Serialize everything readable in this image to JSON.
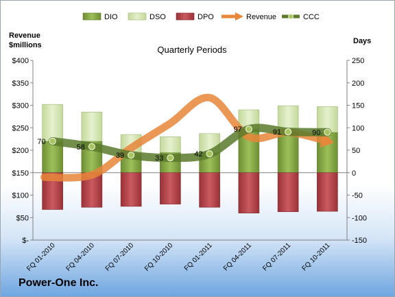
{
  "company": "Power-One Inc.",
  "chart_data": {
    "type": "bar",
    "title": "Quarterly Periods",
    "ylabel_left": "Revenue\n$millions",
    "ylabel_right": "Days",
    "categories": [
      "FQ 01-2010",
      "FQ 04-2010",
      "FQ 07-2010",
      "FQ 10-2010",
      "FQ 01-2011",
      "FQ 04-2011",
      "FQ 07-2011",
      "FQ 10-2011"
    ],
    "left_ticks": [
      "$-",
      "$50",
      "$100",
      "$150",
      "$200",
      "$250",
      "$300",
      "$350",
      "$400"
    ],
    "right_ticks": [
      "-150",
      "-100",
      "-50",
      "0",
      "50",
      "100",
      "150",
      "200",
      "250"
    ],
    "ylim_left": [
      0,
      400
    ],
    "ylim_right": [
      -150,
      250
    ],
    "legend_position": "top",
    "series": [
      {
        "name": "DIO",
        "axis": "days",
        "stack": "pos",
        "color": "#8fb14e",
        "values": [
          70,
          70,
          42,
          45,
          45,
          97,
          91,
          90
        ]
      },
      {
        "name": "DSO",
        "axis": "days",
        "stack": "pos",
        "color": "#d6e8b3",
        "values": [
          82,
          65,
          43,
          35,
          42,
          43,
          58,
          57
        ]
      },
      {
        "name": "DPO",
        "axis": "days",
        "stack": "neg",
        "color": "#b8464c",
        "values": [
          -82,
          -77,
          -75,
          -70,
          -77,
          -90,
          -87,
          -86
        ]
      },
      {
        "name": "Revenue",
        "axis": "revenue",
        "type": "line",
        "color": "#e8863a",
        "values": [
          140,
          145,
          205,
          260,
          317,
          230,
          240,
          220
        ]
      },
      {
        "name": "CCC",
        "axis": "days",
        "type": "line",
        "color": "#5b7a2c",
        "values": [
          70,
          58,
          39,
          33,
          42,
          97,
          91,
          90
        ],
        "labels": [
          "70",
          "58",
          "39",
          "33",
          "42",
          "97",
          "91",
          "90"
        ]
      }
    ]
  }
}
